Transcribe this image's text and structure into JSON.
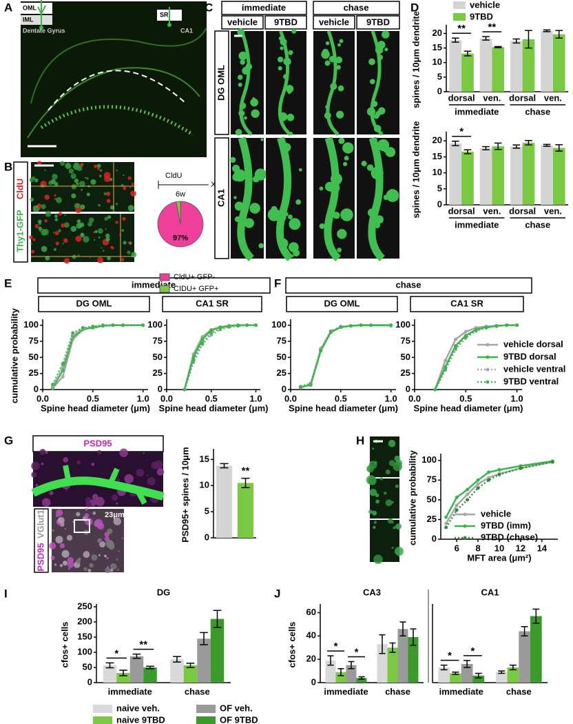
{
  "panels": {
    "A": {
      "letter": "A",
      "insets": [
        "OML",
        "IML",
        "Dentate Gyrus",
        "SR",
        "CA1"
      ]
    },
    "B": {
      "letter": "B",
      "stain_1": "Thy1-GFP",
      "stain_2": "CldU",
      "timeline": [
        "CldU",
        "6w",
        "X"
      ]
    },
    "C": {
      "letter": "C",
      "conditions": [
        "immediate",
        "chase"
      ],
      "treatments": [
        "vehicle",
        "9TBD",
        "vehicle",
        "9TBD"
      ],
      "regions": [
        "DG OML",
        "CA1"
      ]
    },
    "D": {
      "letter": "D"
    },
    "E": {
      "letter": "E",
      "header": "immediate"
    },
    "F": {
      "letter": "F",
      "header": "chase"
    },
    "G": {
      "letter": "G",
      "header": "PSD95",
      "stain_1": "PSD95",
      "stain_2": "VGlut1",
      "area": "23μm²"
    },
    "H": {
      "letter": "H"
    },
    "I": {
      "letter": "I"
    },
    "J": {
      "letter": "J"
    }
  },
  "chart_data": [
    {
      "type": "pie",
      "values": [
        97,
        3
      ],
      "value_labels": [
        "97%",
        null
      ],
      "colors": [
        "#ee3f9b",
        "#7ac943"
      ],
      "labels": [
        "CldU+ GFP-",
        "CIDU+ GFP+"
      ]
    },
    {
      "type": "bar",
      "categories": [
        "dorsal",
        "ven.",
        "dorsal",
        "ven."
      ],
      "groups": [
        "immediate",
        "chase"
      ],
      "series": [
        {
          "name": "vehicle",
          "color": "#d4d4d4",
          "values": [
            17.7,
            18.3,
            17.4,
            20.9
          ],
          "errors": [
            0.7,
            0.6,
            0.7,
            0.3
          ]
        },
        {
          "name": "9TBD",
          "color": "#7ac943",
          "values": [
            13.1,
            15.3,
            18.0,
            19.7
          ],
          "errors": [
            0.8,
            0.2,
            3.0,
            1.3
          ]
        }
      ],
      "ylim": [
        0,
        22
      ],
      "yticks": [
        0,
        5,
        10,
        15,
        20
      ],
      "y_label": "spines / 10μm dendrite",
      "legend": "top",
      "annotations": [
        {
          "text": "**",
          "category": 0,
          "series": [
            0,
            1
          ]
        },
        {
          "text": "**",
          "category": 1,
          "series": [
            0,
            1
          ]
        }
      ]
    },
    {
      "type": "bar",
      "categories": [
        "dorsal",
        "ven.",
        "dorsal",
        "ven."
      ],
      "groups": [
        "immediate",
        "chase"
      ],
      "series": [
        {
          "color": "#d4d4d4",
          "values": [
            19.2,
            17.7,
            18.2,
            18.6
          ],
          "errors": [
            0.7,
            0.5,
            0.5,
            0.3
          ]
        },
        {
          "color": "#7ac943",
          "values": [
            16.6,
            18.3,
            19.4,
            17.8
          ],
          "errors": [
            0.6,
            1.0,
            0.7,
            1.0
          ]
        }
      ],
      "ylim": [
        0,
        22
      ],
      "yticks": [
        0,
        5,
        10,
        15,
        20
      ],
      "y_label": "spines / 10μm dendrite",
      "annotations": [
        {
          "text": "*",
          "category": 0,
          "series": [
            0,
            1
          ]
        }
      ]
    },
    {
      "type": "line",
      "title": "DG OML",
      "x": [
        0.1,
        0.2,
        0.3,
        0.4,
        0.5,
        0.6,
        0.7,
        0.8,
        1.0
      ],
      "series": [
        {
          "color": "#a6a6a6",
          "dash": "solid",
          "values": [
            2,
            20,
            78,
            93,
            97,
            99,
            100,
            100,
            100
          ]
        },
        {
          "color": "#39b54a",
          "dash": "solid",
          "values": [
            3,
            30,
            82,
            94,
            96,
            99,
            100,
            100,
            100
          ]
        },
        {
          "color": "#a6a6a6",
          "dash": "dotted",
          "values": [
            5,
            35,
            85,
            95,
            98,
            100,
            100,
            100,
            100
          ]
        },
        {
          "color": "#39b54a",
          "dash": "dotted",
          "values": [
            8,
            40,
            88,
            96,
            98,
            100,
            100,
            100,
            100
          ]
        }
      ],
      "xlim": [
        0,
        1.05
      ],
      "xticks": [
        {
          "value": 0,
          "label": "0.0"
        },
        0.5,
        {
          "value": 1,
          "label": "1.0"
        }
      ],
      "ylim": [
        0,
        105
      ],
      "yticks": [
        0,
        25,
        50,
        75,
        100
      ],
      "x_label": "Spine head diameter (μm)",
      "y_label": "cumulative probability"
    },
    {
      "type": "line",
      "title": "CA1 SR",
      "x": [
        0.2,
        0.3,
        0.4,
        0.5,
        0.6,
        0.7,
        0.8,
        0.9,
        1.0
      ],
      "series": [
        {
          "color": "#a6a6a6",
          "dash": "solid",
          "values": [
            0,
            55,
            82,
            93,
            97,
            99,
            100,
            100,
            100
          ]
        },
        {
          "color": "#39b54a",
          "dash": "solid",
          "values": [
            0,
            50,
            78,
            92,
            97,
            99,
            100,
            100,
            100
          ]
        },
        {
          "color": "#a6a6a6",
          "dash": "dotted",
          "values": [
            0,
            42,
            70,
            85,
            93,
            97,
            99,
            100,
            100
          ]
        },
        {
          "color": "#39b54a",
          "dash": "dotted",
          "values": [
            0,
            45,
            72,
            88,
            95,
            98,
            99,
            100,
            100
          ]
        }
      ],
      "xlim": [
        0,
        1.05
      ],
      "xticks": [
        {
          "value": 0,
          "label": "0.0"
        },
        0.5,
        {
          "value": 1,
          "label": "1.0"
        }
      ],
      "ylim": [
        0,
        105
      ],
      "yticks": [
        0,
        25,
        50,
        75,
        100
      ],
      "x_label": "Spine head diameter (μm)"
    },
    {
      "type": "line",
      "title": "DG OML",
      "x": [
        0.1,
        0.2,
        0.3,
        0.4,
        0.5,
        0.6,
        0.7,
        0.8,
        1.0
      ],
      "series": [
        {
          "color": "#a6a6a6",
          "dash": "solid",
          "values": [
            3,
            8,
            62,
            90,
            97,
            99,
            100,
            100,
            100
          ]
        },
        {
          "color": "#39b54a",
          "dash": "solid",
          "values": [
            4,
            7,
            60,
            89,
            97,
            99,
            100,
            100,
            100
          ]
        },
        {
          "color": "#a6a6a6",
          "dash": "dotted",
          "values": [
            5,
            10,
            64,
            91,
            98,
            99,
            100,
            100,
            99
          ]
        },
        {
          "color": "#39b54a",
          "dash": "dotted",
          "values": [
            4,
            9,
            61,
            90,
            97,
            99,
            100,
            100,
            100
          ]
        }
      ],
      "xlim": [
        0,
        1.05
      ],
      "xticks": [
        {
          "value": 0,
          "label": "0.0"
        },
        0.5,
        {
          "value": 1,
          "label": "1.0"
        }
      ],
      "ylim": [
        0,
        105
      ],
      "yticks": [
        0,
        25,
        50,
        75,
        100
      ],
      "x_label": "Spine head diameter (μm)"
    },
    {
      "type": "line",
      "title": "CA1 SR",
      "x": [
        0.2,
        0.3,
        0.4,
        0.5,
        0.6,
        0.7,
        0.8,
        0.9,
        1.0
      ],
      "series": [
        {
          "name": "vehicle dorsal",
          "color": "#a6a6a6",
          "dash": "solid",
          "values": [
            0,
            45,
            78,
            90,
            96,
            98,
            99,
            100,
            100
          ]
        },
        {
          "name": "9TBD dorsal",
          "color": "#39b54a",
          "dash": "solid",
          "values": [
            0,
            35,
            68,
            84,
            93,
            97,
            99,
            100,
            100
          ]
        },
        {
          "name": "vehicle ventral",
          "color": "#a6a6a6",
          "dash": "dotted",
          "values": [
            0,
            30,
            62,
            80,
            91,
            96,
            98,
            100,
            100
          ]
        },
        {
          "name": "9TBD ventral",
          "color": "#39b54a",
          "dash": "dotted",
          "values": [
            0,
            32,
            65,
            82,
            92,
            96,
            99,
            100,
            100
          ]
        }
      ],
      "xlim": [
        0,
        1.05
      ],
      "xticks": [
        {
          "value": 0,
          "label": "0.0"
        },
        0.5,
        {
          "value": 1,
          "label": "1.0"
        }
      ],
      "ylim": [
        0,
        105
      ],
      "yticks": [
        0,
        25,
        50,
        75,
        100
      ],
      "x_label": "Spine head diameter (μm)",
      "legend": "right"
    },
    {
      "type": "bar",
      "values": [
        13.8,
        10.5
      ],
      "errors": [
        0.4,
        0.9
      ],
      "colors": [
        "#d4d4d4",
        "#7ac943"
      ],
      "ylim": [
        0,
        16.5
      ],
      "yticks": [
        0,
        5,
        10,
        15
      ],
      "y_label": "PSD95+ spines / 10μm",
      "annotations": [
        {
          "text": "**",
          "index": 1
        }
      ]
    },
    {
      "type": "line",
      "x": [
        5,
        6,
        7,
        8,
        9,
        10,
        12,
        15
      ],
      "series": [
        {
          "name": "vehicle",
          "color": "#a6a6a6",
          "dash": "solid",
          "values": [
            20,
            43,
            57,
            70,
            78,
            83,
            90,
            98
          ]
        },
        {
          "name": "9TBD (imm)",
          "color": "#39b54a",
          "dash": "solid",
          "values": [
            28,
            53,
            63,
            75,
            85,
            88,
            93,
            99
          ]
        },
        {
          "name": "9TBD (chase)",
          "color": "#2e8b2e",
          "dash": "dotted",
          "values": [
            15,
            37,
            50,
            65,
            75,
            82,
            90,
            98
          ]
        }
      ],
      "xlim": [
        4.5,
        15.5
      ],
      "xticks": [
        6,
        8,
        10,
        12,
        14
      ],
      "ylim": [
        0,
        105
      ],
      "yticks": [
        0,
        25,
        50,
        75,
        100
      ],
      "x_label": "MFT area (μm²)",
      "y_label": "cumulative probability",
      "legend": "bottom-right"
    },
    {
      "type": "bar",
      "title": "DG",
      "categories": [
        "immediate",
        "chase"
      ],
      "series": [
        {
          "name": "naive veh.",
          "color": "#d9d9d9",
          "values": [
            57,
            77
          ],
          "errors": [
            8,
            9
          ]
        },
        {
          "name": "naive 9TBD",
          "color": "#7ac943",
          "values": [
            32,
            57
          ],
          "errors": [
            9,
            7
          ]
        },
        {
          "name": "OF veh.",
          "color": "#9a9a9a",
          "values": [
            87,
            145
          ],
          "errors": [
            7,
            20
          ]
        },
        {
          "name": "OF 9TBD",
          "color": "#3a9a2a",
          "values": [
            50,
            210
          ],
          "errors": [
            4,
            28
          ]
        }
      ],
      "ylim": [
        0,
        250
      ],
      "yticks": [
        0,
        50,
        100,
        150,
        200,
        250
      ],
      "y_label": "cfos+ cells",
      "legend": "bottom",
      "annotations": [
        {
          "text": "*",
          "category": 0,
          "series": [
            0,
            1
          ]
        },
        {
          "text": "**",
          "category": 0,
          "series": [
            2,
            3
          ]
        }
      ]
    },
    {
      "type": "bar",
      "title": "CA3",
      "categories": [
        "immediate",
        "chase"
      ],
      "series": [
        {
          "color": "#d9d9d9",
          "values": [
            19,
            33
          ],
          "errors": [
            4,
            8
          ]
        },
        {
          "color": "#7ac943",
          "values": [
            9,
            30
          ],
          "errors": [
            3,
            4
          ]
        },
        {
          "color": "#9a9a9a",
          "values": [
            15,
            46
          ],
          "errors": [
            3,
            6
          ]
        },
        {
          "color": "#3a9a2a",
          "values": [
            4,
            39
          ],
          "errors": [
            1,
            7
          ]
        }
      ],
      "ylim": [
        0,
        65
      ],
      "yticks": [
        0,
        20,
        40,
        60
      ],
      "y_label": "cfos+ cells",
      "annotations": [
        {
          "text": "*",
          "category": 0,
          "series": [
            0,
            1
          ]
        },
        {
          "text": "*",
          "category": 0,
          "series": [
            2,
            3
          ]
        }
      ]
    },
    {
      "type": "bar",
      "title": "CA1",
      "categories": [
        "immediate",
        "chase"
      ],
      "series": [
        {
          "color": "#d9d9d9",
          "values": [
            13,
            9
          ],
          "errors": [
            2,
            1
          ]
        },
        {
          "color": "#7ac943",
          "values": [
            8,
            13
          ],
          "errors": [
            1,
            2
          ]
        },
        {
          "color": "#9a9a9a",
          "values": [
            16,
            44
          ],
          "errors": [
            3,
            4
          ]
        },
        {
          "color": "#3a9a2a",
          "values": [
            6,
            57
          ],
          "errors": [
            2,
            6
          ]
        }
      ],
      "ylim": [
        0,
        65
      ],
      "annotations": [
        {
          "text": "*",
          "category": 0,
          "series": [
            0,
            1
          ]
        },
        {
          "text": "*",
          "category": 0,
          "series": [
            2,
            3
          ]
        }
      ]
    }
  ]
}
